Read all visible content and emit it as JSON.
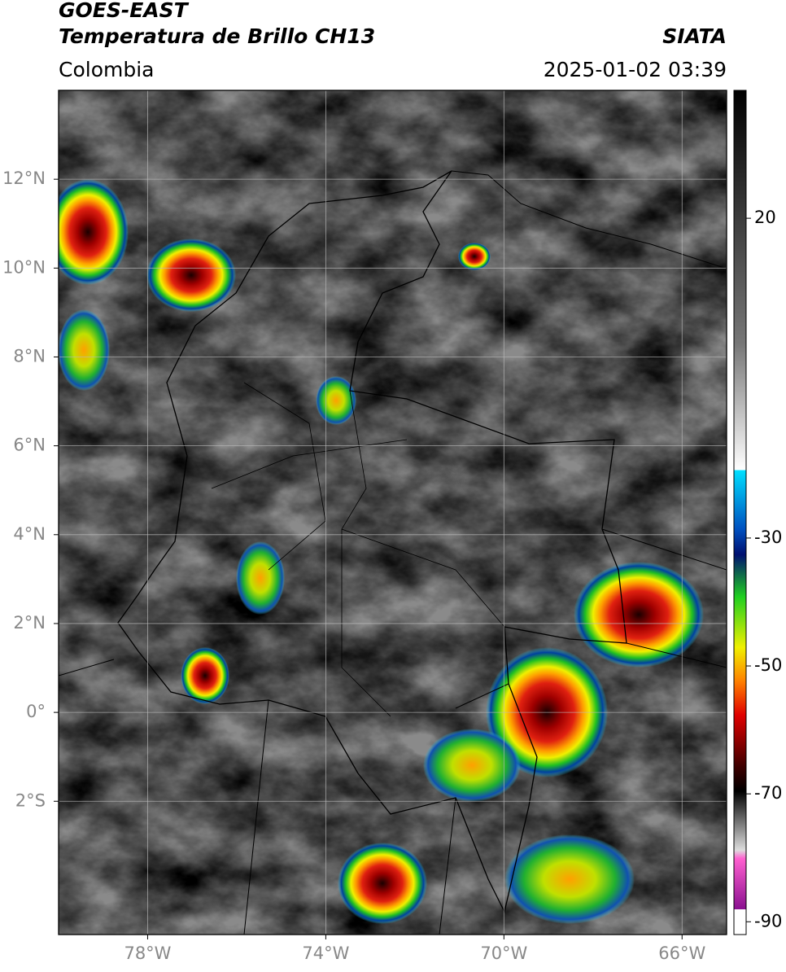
{
  "header": {
    "title": "GOES-EAST",
    "subtitle": "Temperatura de Brillo CH13",
    "source": "SIATA",
    "region": "Colombia",
    "datetime": "2025-01-02 03:39"
  },
  "map": {
    "lonlim": [
      -80,
      -65
    ],
    "latlim": [
      -5,
      14
    ],
    "lonticks": [
      {
        "value": -78,
        "label": "78°W"
      },
      {
        "value": -74,
        "label": "74°W"
      },
      {
        "value": -70,
        "label": "70°W"
      },
      {
        "value": -66,
        "label": "66°W"
      }
    ],
    "latticks": [
      {
        "value": 12,
        "label": "12°N"
      },
      {
        "value": 10,
        "label": "10°N"
      },
      {
        "value": 8,
        "label": "8°N"
      },
      {
        "value": 6,
        "label": "6°N"
      },
      {
        "value": 4,
        "label": "4°N"
      },
      {
        "value": 2,
        "label": "2°N"
      },
      {
        "value": 0,
        "label": "0°"
      },
      {
        "value": -2,
        "label": "2°S"
      }
    ],
    "grid": true
  },
  "colorbar": {
    "clim": [
      -92,
      40
    ],
    "ticks": [
      20,
      -30,
      -50,
      -70,
      -90
    ]
  }
}
